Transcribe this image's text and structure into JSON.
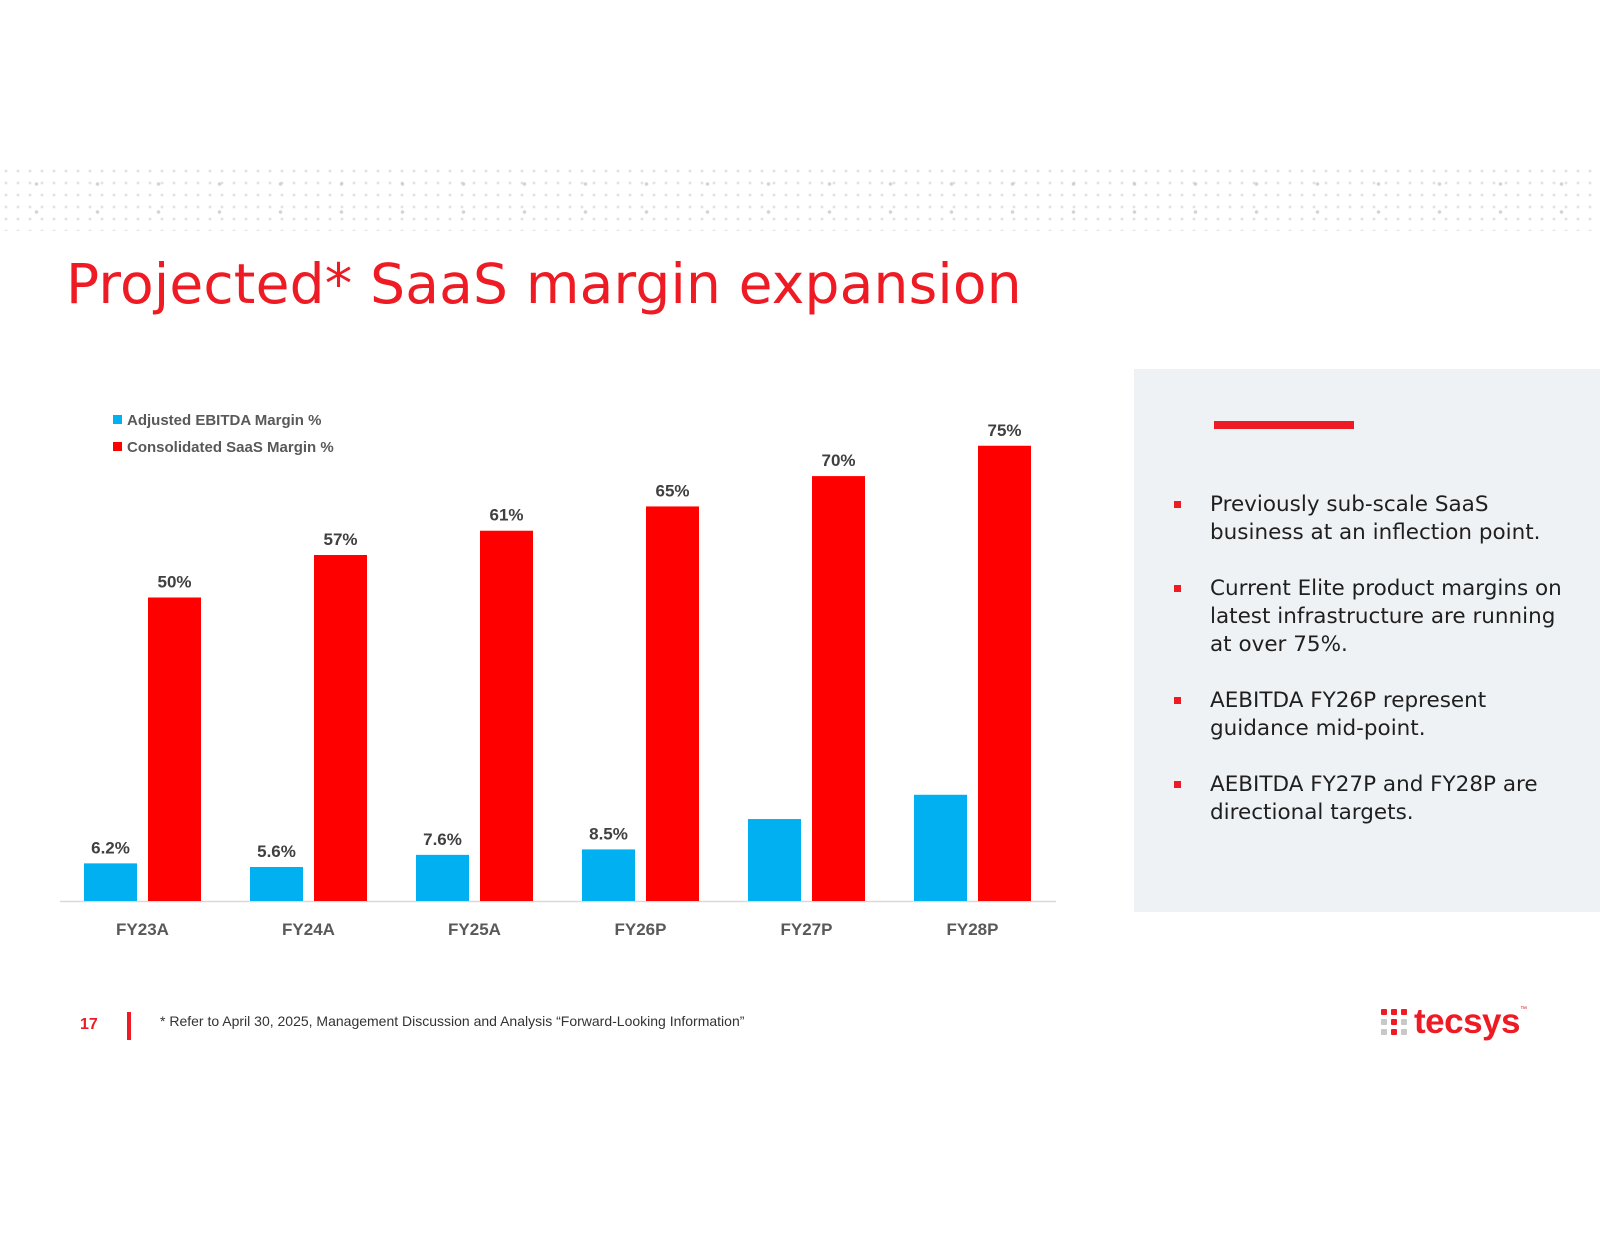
{
  "slide": {
    "title": "Projected* SaaS margin expansion",
    "page_number": "17",
    "footnote": "* Refer to April 30, 2025, Management Discussion and Analysis “Forward-Looking Information”",
    "logo_text": "tecsys",
    "logo_tm": "™"
  },
  "panel": {
    "bullets": [
      "Previously sub-scale SaaS business at an inflection point.",
      "Current Elite product margins on latest infrastructure are running at over 75%.",
      "AEBITDA FY26P represent guidance mid-point.",
      "AEBITDA FY27P and FY28P are directional targets."
    ]
  },
  "colors": {
    "accent": "#ee1b24",
    "ebitda": "#00b0f0",
    "saas": "#ff0000",
    "panel_bg": "#eff2f5"
  },
  "chart_data": {
    "type": "bar",
    "title": "",
    "xlabel": "",
    "ylabel": "",
    "ylim": [
      0,
      80
    ],
    "grid": false,
    "legend_position": "top-left",
    "categories": [
      "FY23A",
      "FY24A",
      "FY25A",
      "FY26P",
      "FY27P",
      "FY28P"
    ],
    "series": [
      {
        "name": "Adjusted EBITDA Margin %",
        "values": [
          6.2,
          5.6,
          7.6,
          8.5,
          13.5,
          17.5
        ],
        "labels": [
          "6.2%",
          "5.6%",
          "7.6%",
          "8.5%",
          "",
          ""
        ]
      },
      {
        "name": "Consolidated SaaS Margin %",
        "values": [
          50,
          57,
          61,
          65,
          70,
          75
        ],
        "labels": [
          "50%",
          "57%",
          "61%",
          "65%",
          "70%",
          "75%"
        ]
      }
    ]
  }
}
